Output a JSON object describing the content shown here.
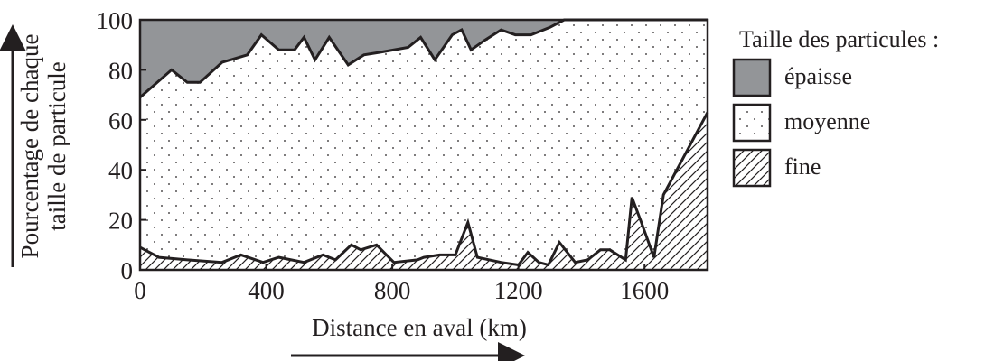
{
  "chart_data": {
    "type": "area",
    "stacked": true,
    "xlabel": "Distance en aval (km)",
    "ylabel_line1": "Pourcentage de chaque",
    "ylabel_line2": "taille de particule",
    "xlim": [
      0,
      1800
    ],
    "ylim": [
      0,
      100
    ],
    "x_ticks": [
      "0",
      "400",
      "800",
      "1200",
      "1600"
    ],
    "y_ticks": [
      "0",
      "20",
      "40",
      "60",
      "80",
      "100"
    ],
    "legend_title": "Taille des particules :",
    "legend": [
      "épaisse",
      "moyenne",
      "fine"
    ],
    "series_colors": {
      "coarse": "#939598",
      "medium_dots": "#231f20",
      "fine_hatch": "#231f20"
    },
    "coarse_lower_boundary": [
      [
        0,
        69
      ],
      [
        100,
        80
      ],
      [
        150,
        75
      ],
      [
        190,
        75
      ],
      [
        260,
        83
      ],
      [
        340,
        86
      ],
      [
        385,
        94
      ],
      [
        440,
        88
      ],
      [
        490,
        88
      ],
      [
        520,
        93
      ],
      [
        555,
        84
      ],
      [
        600,
        93
      ],
      [
        660,
        82
      ],
      [
        710,
        86
      ],
      [
        760,
        87
      ],
      [
        850,
        89
      ],
      [
        890,
        93
      ],
      [
        935,
        84
      ],
      [
        990,
        94
      ],
      [
        1020,
        96
      ],
      [
        1050,
        88
      ],
      [
        1095,
        92
      ],
      [
        1145,
        96
      ],
      [
        1190,
        94
      ],
      [
        1240,
        94
      ],
      [
        1300,
        97
      ],
      [
        1345,
        100
      ],
      [
        1800,
        100
      ]
    ],
    "fine_upper_boundary": [
      [
        0,
        9
      ],
      [
        60,
        5
      ],
      [
        150,
        4
      ],
      [
        260,
        3
      ],
      [
        320,
        6
      ],
      [
        390,
        3
      ],
      [
        440,
        5
      ],
      [
        520,
        3
      ],
      [
        580,
        6
      ],
      [
        620,
        4
      ],
      [
        670,
        10
      ],
      [
        700,
        8
      ],
      [
        750,
        10
      ],
      [
        805,
        3
      ],
      [
        880,
        4
      ],
      [
        900,
        5
      ],
      [
        950,
        6
      ],
      [
        1000,
        6
      ],
      [
        1040,
        19
      ],
      [
        1070,
        5
      ],
      [
        1145,
        3
      ],
      [
        1200,
        2
      ],
      [
        1230,
        7
      ],
      [
        1265,
        3
      ],
      [
        1295,
        2
      ],
      [
        1330,
        11
      ],
      [
        1380,
        3
      ],
      [
        1420,
        4
      ],
      [
        1460,
        8
      ],
      [
        1490,
        8
      ],
      [
        1540,
        4
      ],
      [
        1560,
        29
      ],
      [
        1590,
        19
      ],
      [
        1630,
        5
      ],
      [
        1660,
        30
      ],
      [
        1800,
        63
      ]
    ]
  }
}
